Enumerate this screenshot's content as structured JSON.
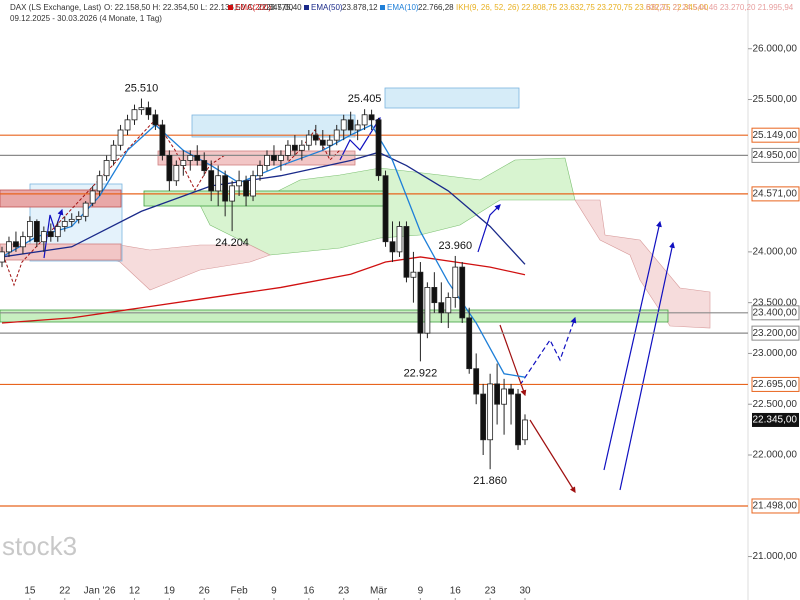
{
  "chart_data": {
    "type": "candlestick",
    "title": "DAX (LS Exchange, Last)",
    "ohlc_text": "O: 22.158,50  H: 22.354,50  L: 22.136,50  C: 22.345,00",
    "period": "09.12.2025 - 30.03.2026  (4 Monate, 1 Tag)",
    "extra_indicators": [
      {
        "text": "IKH(9, 26, 52, 26)  22.808,75  23.632,75  23.270,75  23.632,75  22.345,00",
        "color": "#e8b020"
      },
      {
        "text": "BB(20, 2)  24.544,46  23.270,20  21.995,94",
        "color": "#e8a0a0"
      }
    ],
    "watermark": "stock3",
    "categories": [
      null,
      null,
      null,
      null,
      "15",
      null,
      null,
      null,
      null,
      "22",
      null,
      null,
      null,
      null,
      "Jan '26",
      null,
      null,
      null,
      null,
      "12",
      null,
      null,
      null,
      null,
      "19",
      null,
      null,
      null,
      null,
      "26",
      null,
      null,
      null,
      null,
      "Feb",
      null,
      null,
      null,
      null,
      "9",
      null,
      null,
      null,
      null,
      "16",
      null,
      null,
      null,
      null,
      "23",
      null,
      null,
      null,
      null,
      "Mär",
      null,
      null,
      null,
      null,
      null,
      "9",
      null,
      null,
      null,
      null,
      "16",
      null,
      null,
      null,
      null,
      "23",
      null,
      null,
      null,
      null,
      "30"
    ],
    "open": [
      23900,
      24000,
      24100,
      24050,
      24150,
      24300,
      24100,
      24200,
      24150,
      24250,
      24300,
      24320,
      24350,
      24480,
      24600,
      24750,
      24900,
      25050,
      25200,
      25300,
      25400,
      25420,
      25350,
      25250,
      24950,
      24700,
      24850,
      24900,
      24950,
      24900,
      24800,
      24600,
      24750,
      24500,
      24650,
      24700,
      24550,
      24750,
      24850,
      24950,
      24900,
      24950,
      25050,
      25000,
      25050,
      25150,
      25100,
      25050,
      25100,
      25200,
      25300,
      25200,
      25250,
      25350,
      25300,
      24750,
      24100,
      24000,
      24250,
      23750,
      23800,
      23200,
      23650,
      23500,
      23400,
      23550,
      23850,
      23350,
      22850,
      22600,
      22150,
      22700,
      22500,
      22650,
      22600,
      22150
    ],
    "high": [
      24050,
      24150,
      24200,
      24200,
      24350,
      24320,
      24250,
      24280,
      24300,
      24350,
      24380,
      24400,
      24500,
      24650,
      24800,
      24950,
      25100,
      25250,
      25350,
      25450,
      25510,
      25480,
      25400,
      25300,
      25000,
      24900,
      25000,
      25000,
      25050,
      24980,
      24900,
      24850,
      24800,
      24700,
      24800,
      24750,
      24800,
      24900,
      25000,
      25050,
      25000,
      25100,
      25150,
      25100,
      25200,
      25250,
      25200,
      25150,
      25250,
      25350,
      25380,
      25300,
      25405,
      25400,
      25320,
      24800,
      24300,
      24300,
      24300,
      24000,
      23900,
      23700,
      23800,
      23700,
      23600,
      23960,
      23900,
      23450,
      23000,
      22700,
      22800,
      22900,
      22750,
      22700,
      22650,
      22400
    ],
    "low": [
      23850,
      23950,
      24000,
      23980,
      24100,
      24050,
      24000,
      24100,
      24100,
      24200,
      24250,
      24280,
      24300,
      24450,
      24550,
      24700,
      24850,
      25000,
      25150,
      25250,
      25350,
      25300,
      25200,
      24900,
      24600,
      24650,
      24750,
      24800,
      24850,
      24750,
      24500,
      24450,
      24350,
      24204,
      24550,
      24450,
      24500,
      24700,
      24800,
      24850,
      24800,
      24900,
      24950,
      24900,
      25000,
      25050,
      25000,
      24950,
      25050,
      25100,
      25150,
      25100,
      25200,
      25200,
      24700,
      24050,
      23900,
      23950,
      23700,
      23500,
      22922,
      23150,
      23400,
      23300,
      23250,
      23450,
      23300,
      22800,
      22500,
      22000,
      21860,
      22300,
      22200,
      22300,
      22050,
      22100
    ],
    "close": [
      24000,
      24100,
      24050,
      24150,
      24300,
      24100,
      24200,
      24150,
      24250,
      24300,
      24320,
      24350,
      24480,
      24600,
      24750,
      24900,
      25050,
      25200,
      25300,
      25400,
      25420,
      25350,
      25250,
      24950,
      24700,
      24850,
      24900,
      24950,
      24900,
      24800,
      24600,
      24750,
      24500,
      24650,
      24700,
      24550,
      24750,
      24850,
      24950,
      24900,
      24950,
      25050,
      25000,
      25050,
      25150,
      25100,
      25050,
      25100,
      25200,
      25300,
      25200,
      25250,
      25350,
      25300,
      24750,
      24100,
      24000,
      24250,
      23750,
      23800,
      23200,
      23650,
      23500,
      23400,
      23550,
      23850,
      23350,
      22850,
      22600,
      22150,
      22700,
      22500,
      22650,
      22600,
      22100,
      22345
    ],
    "series": [
      {
        "name": "EMA(200)",
        "legend_value": "23.775,40",
        "color": "#d01010",
        "x": [
          0,
          10,
          20,
          30,
          40,
          50,
          55,
          60,
          65,
          70,
          75
        ],
        "values": [
          23300,
          23350,
          23450,
          23550,
          23650,
          23780,
          23900,
          23950,
          23900,
          23850,
          23775
        ]
      },
      {
        "name": "EMA(50)",
        "legend_value": "23.878,12",
        "color": "#1a2a8a",
        "x": [
          0,
          10,
          20,
          30,
          40,
          50,
          54,
          58,
          64,
          70,
          75
        ],
        "values": [
          23950,
          24050,
          24400,
          24650,
          24750,
          24900,
          24980,
          24850,
          24600,
          24250,
          23878
        ]
      },
      {
        "name": "EMA(10)",
        "legend_value": "22.766,28",
        "color": "#1e7fd8",
        "x": [
          0,
          5,
          10,
          14,
          18,
          22,
          26,
          30,
          34,
          40,
          46,
          50,
          53,
          56,
          60,
          64,
          68,
          72,
          75
        ],
        "values": [
          23950,
          24150,
          24250,
          24550,
          25000,
          25250,
          25000,
          24850,
          24680,
          24850,
          25000,
          25150,
          25250,
          24900,
          24200,
          23700,
          23300,
          22800,
          22766
        ]
      }
    ],
    "levels": [
      {
        "value": 25149,
        "label": "25.149,00",
        "color": "#e8641e"
      },
      {
        "value": 24950,
        "label": "24.950,00",
        "color": "#8a8a8a"
      },
      {
        "value": 24571,
        "label": "24.571,00",
        "color": "#e8641e"
      },
      {
        "value": 23400,
        "label": "23.400,00",
        "color": "#8a8a8a"
      },
      {
        "value": 23200,
        "label": "23.200,00",
        "color": "#8a8a8a"
      },
      {
        "value": 22695,
        "label": "22.695,00",
        "color": "#e8641e"
      },
      {
        "value": 21498,
        "label": "21.498,00",
        "color": "#e8641e"
      }
    ],
    "last_price": {
      "value": 22345,
      "label": "22.345,00"
    },
    "annotations": [
      {
        "value": 25510,
        "label": "25.510",
        "at": "high"
      },
      {
        "value": 25405,
        "label": "25.405",
        "at": "high"
      },
      {
        "value": 24204,
        "label": "24.204",
        "at": "low"
      },
      {
        "value": 23960,
        "label": "23.960",
        "at": "high"
      },
      {
        "value": 22922,
        "label": "22.922",
        "at": "low"
      },
      {
        "value": 21860,
        "label": "21.860",
        "at": "low"
      }
    ],
    "ylim": [
      20720,
      26480
    ],
    "yticks": [
      {
        "value": 21000,
        "label": "21.000,00"
      },
      {
        "value": 22000,
        "label": "22.000,00"
      },
      {
        "value": 22500,
        "label": "22.500,00"
      },
      {
        "value": 23000,
        "label": "23.000,00"
      },
      {
        "value": 23500,
        "label": "23.500,00"
      },
      {
        "value": 24000,
        "label": "24.000,00"
      },
      {
        "value": 25500,
        "label": "25.500,00"
      },
      {
        "value": 26000,
        "label": "26.000,00"
      }
    ]
  }
}
